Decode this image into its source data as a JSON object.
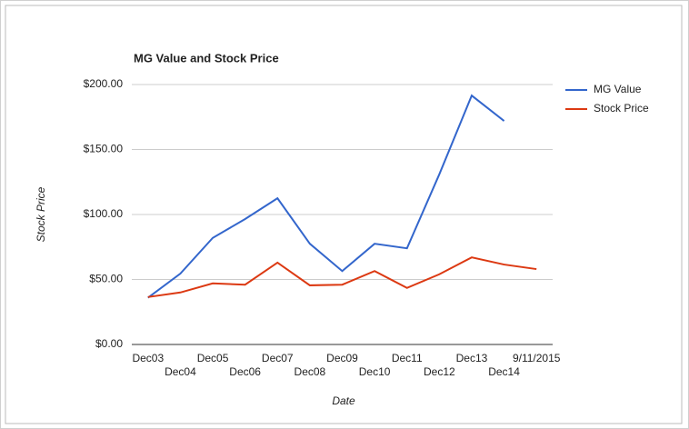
{
  "chart_data": {
    "type": "line",
    "title": "MG Value and Stock Price",
    "x_label": "Date",
    "y_label": "Stock Price",
    "categories": [
      "Dec03",
      "Dec04",
      "Dec05",
      "Dec06",
      "Dec07",
      "Dec08",
      "Dec09",
      "Dec10",
      "Dec11",
      "Dec12",
      "Dec13",
      "Dec14",
      "9/11/2015"
    ],
    "series": [
      {
        "name": "MG Value",
        "color": "#3366cc",
        "values": [
          36,
          54.5,
          82,
          96.5,
          112.5,
          77.5,
          56.5,
          77.5,
          74,
          131,
          191.5,
          172,
          null
        ]
      },
      {
        "name": "Stock Price",
        "color": "#dc3912",
        "values": [
          36.5,
          40,
          47,
          46,
          63,
          45.5,
          46,
          56.5,
          43.5,
          54,
          67,
          61.5,
          58
        ]
      }
    ],
    "ylim": [
      0,
      200
    ],
    "yticks": [
      {
        "value": 0,
        "label": "$0.00"
      },
      {
        "value": 50,
        "label": "$50.00"
      },
      {
        "value": 100,
        "label": "$100.00"
      },
      {
        "value": 150,
        "label": "$150.00"
      },
      {
        "value": 200,
        "label": "$200.00"
      }
    ],
    "grid": true,
    "legend": "right"
  }
}
